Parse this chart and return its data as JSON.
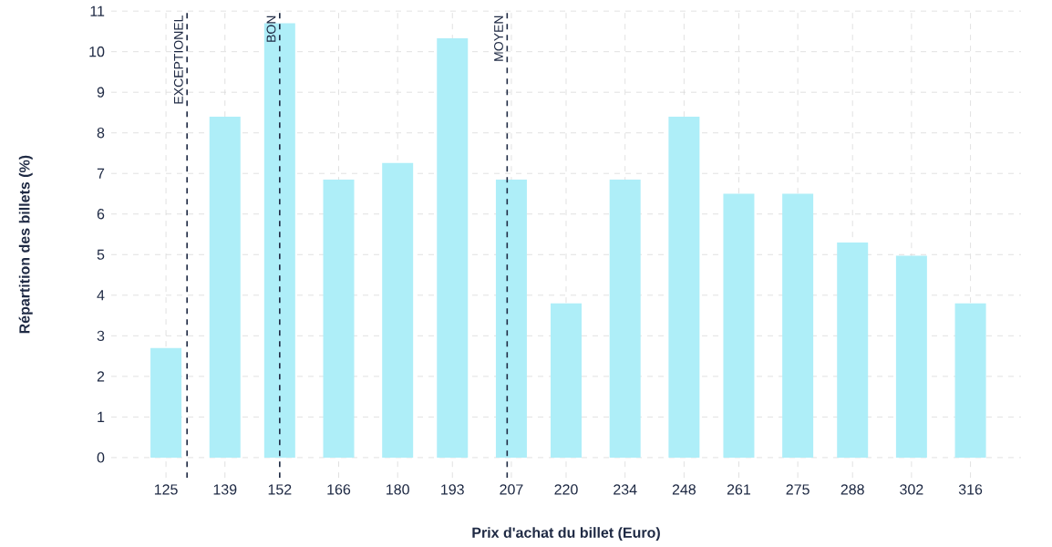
{
  "chart_data": {
    "type": "bar",
    "xlabel": "Prix d'achat du billet (Euro)",
    "ylabel": "Répartition des billets (%)",
    "x": [
      125,
      139,
      152,
      166,
      180,
      193,
      207,
      220,
      234,
      248,
      261,
      275,
      288,
      302,
      316
    ],
    "values": [
      2.7,
      8.4,
      10.7,
      6.85,
      7.26,
      10.33,
      6.85,
      3.8,
      6.85,
      8.4,
      6.5,
      6.5,
      5.3,
      4.97,
      3.8
    ],
    "color": "#aeeef8",
    "xlim": [
      112,
      328
    ],
    "ylim": [
      -0.5,
      11
    ],
    "xticks": [
      125,
      139,
      152,
      166,
      180,
      193,
      207,
      220,
      234,
      248,
      261,
      275,
      288,
      302,
      316
    ],
    "yticks": [
      0,
      1,
      2,
      3,
      4,
      5,
      6,
      7,
      8,
      9,
      10,
      11
    ],
    "grid": true,
    "ref_lines": [
      {
        "axis": "x",
        "value": 130,
        "label": "EXCEPTIONEL",
        "color": "#1f2a44",
        "line_style": "dashed"
      },
      {
        "axis": "x",
        "value": 152,
        "label": "BON",
        "color": "#1f2a44",
        "line_style": "dashed"
      },
      {
        "axis": "x",
        "value": 206,
        "label": "MOYEN",
        "color": "#1f2a44",
        "line_style": "dashed"
      }
    ]
  }
}
